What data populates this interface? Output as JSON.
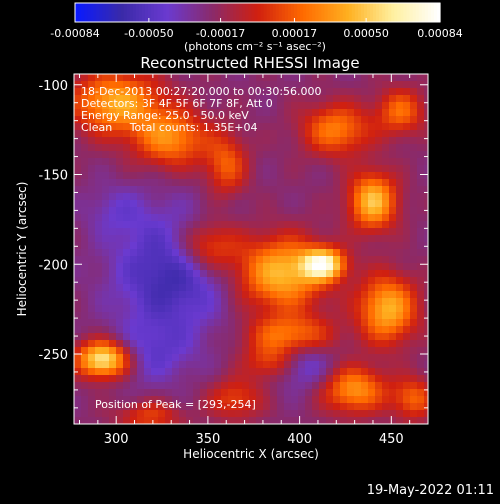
{
  "chart_data": {
    "type": "heatmap",
    "title": "Reconstructed RHESSI Image",
    "xlabel": "Heliocentric X (arcsec)",
    "ylabel": "Heliocentric Y (arcsec)",
    "xlim": [
      277,
      470
    ],
    "ylim": [
      -289,
      -94
    ],
    "x_ticks": [
      300,
      350,
      400,
      450
    ],
    "y_ticks": [
      -100,
      -150,
      -200,
      -250
    ],
    "colorbar": {
      "ticks": [
        "-0.00084",
        "-0.00050",
        "-0.00017",
        "0.00017",
        "0.00050",
        "0.00084"
      ],
      "range": [
        -0.00084,
        0.00084
      ],
      "units_label": "(photons cm⁻² s⁻¹ asec⁻²)",
      "colors": [
        "#0a1aff",
        "#3a2aa8",
        "#6a3ad0",
        "#8a2a6a",
        "#d02010",
        "#ff6a00",
        "#ffb020",
        "#fff0a0",
        "#ffffff"
      ]
    },
    "annotations": [
      "18-Dec-2013 00:27:20.000 to 00:30:56.000",
      "Detectors: 3F 4F 5F 6F 7F 8F, Att 0",
      "Energy Range: 25.0 - 50.0 keV",
      "Clean     Total counts: 1.35E+04"
    ],
    "peak_label": "Position of Peak = [293,-254]",
    "peak": [
      293,
      -254
    ],
    "sources": [
      {
        "x": 293,
        "y": -253,
        "amp": 0.00088,
        "sx": 10,
        "sy": 7
      },
      {
        "x": 300,
        "y": -110,
        "amp": 0.00062,
        "sx": 17,
        "sy": 12
      },
      {
        "x": 330,
        "y": -130,
        "amp": 0.00052,
        "sx": 14,
        "sy": 11
      },
      {
        "x": 360,
        "y": -145,
        "amp": 0.00038,
        "sx": 8,
        "sy": 12
      },
      {
        "x": 350,
        "y": -190,
        "amp": 0.00045,
        "sx": 12,
        "sy": 10
      },
      {
        "x": 390,
        "y": -205,
        "amp": 0.00068,
        "sx": 17,
        "sy": 14
      },
      {
        "x": 413,
        "y": -200,
        "amp": 0.00085,
        "sx": 8,
        "sy": 6
      },
      {
        "x": 440,
        "y": -165,
        "amp": 0.0007,
        "sx": 9,
        "sy": 11
      },
      {
        "x": 448,
        "y": -225,
        "amp": 0.00065,
        "sx": 11,
        "sy": 13
      },
      {
        "x": 395,
        "y": -240,
        "amp": 0.0005,
        "sx": 16,
        "sy": 8
      },
      {
        "x": 385,
        "y": -255,
        "amp": 0.00036,
        "sx": 10,
        "sy": 7
      },
      {
        "x": 365,
        "y": -275,
        "amp": 0.00032,
        "sx": 10,
        "sy": 8
      },
      {
        "x": 420,
        "y": -125,
        "amp": 0.00048,
        "sx": 13,
        "sy": 10
      },
      {
        "x": 455,
        "y": -115,
        "amp": 0.00042,
        "sx": 9,
        "sy": 9
      },
      {
        "x": 430,
        "y": -270,
        "amp": 0.00055,
        "sx": 12,
        "sy": 9
      },
      {
        "x": 462,
        "y": -275,
        "amp": 0.0004,
        "sx": 8,
        "sy": 8
      },
      {
        "x": 318,
        "y": -285,
        "amp": 0.0003,
        "sx": 12,
        "sy": 6
      },
      {
        "x": 330,
        "y": -205,
        "amp": -0.0004,
        "sx": 22,
        "sy": 24
      },
      {
        "x": 320,
        "y": -250,
        "amp": -0.0002,
        "sx": 15,
        "sy": 12
      },
      {
        "x": 400,
        "y": -255,
        "amp": -0.0003,
        "sx": 12,
        "sy": 10
      },
      {
        "x": 300,
        "y": -170,
        "amp": -0.00015,
        "sx": 12,
        "sy": 10
      }
    ]
  },
  "footer": {
    "timestamp": "19-May-2022 01:11"
  }
}
